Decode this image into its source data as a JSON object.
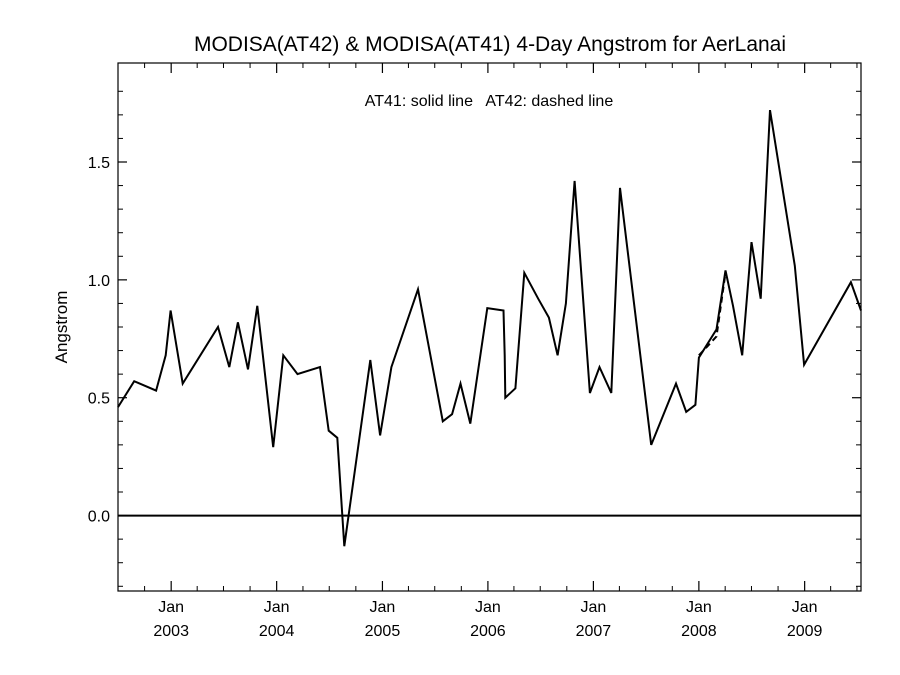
{
  "chart_data": {
    "type": "line",
    "title": "MODISA(AT42) & MODISA(AT41) 4-Day Angstrom for AerLanai",
    "ylabel": "Angstrom",
    "xlabel": "",
    "legend_note": "AT41: solid line   AT42: dashed line",
    "ylim": [
      -0.32,
      1.92
    ],
    "xlim": [
      "2002-07-01",
      "2009-07-15"
    ],
    "y_ticks": [
      {
        "value": 0.0,
        "label": "0.0"
      },
      {
        "value": 0.5,
        "label": "0.5"
      },
      {
        "value": 1.0,
        "label": "1.0"
      },
      {
        "value": 1.5,
        "label": "1.5"
      }
    ],
    "x_ticks": [
      {
        "date": "2003-01-01",
        "month": "Jan",
        "year": "2003"
      },
      {
        "date": "2004-01-01",
        "month": "Jan",
        "year": "2004"
      },
      {
        "date": "2005-01-01",
        "month": "Jan",
        "year": "2005"
      },
      {
        "date": "2006-01-01",
        "month": "Jan",
        "year": "2006"
      },
      {
        "date": "2007-01-01",
        "month": "Jan",
        "year": "2007"
      },
      {
        "date": "2008-01-01",
        "month": "Jan",
        "year": "2008"
      },
      {
        "date": "2009-01-01",
        "month": "Jan",
        "year": "2009"
      }
    ],
    "reference_line": {
      "y": 0.0
    },
    "series": [
      {
        "name": "AT41",
        "style": "solid",
        "color": "#000000",
        "points": [
          [
            "2002-07-01",
            0.46
          ],
          [
            "2002-08-26",
            0.57
          ],
          [
            "2002-11-10",
            0.53
          ],
          [
            "2002-12-13",
            0.68
          ],
          [
            "2002-12-30",
            0.87
          ],
          [
            "2003-02-10",
            0.56
          ],
          [
            "2003-06-12",
            0.8
          ],
          [
            "2003-07-21",
            0.63
          ],
          [
            "2003-08-20",
            0.82
          ],
          [
            "2003-09-24",
            0.62
          ],
          [
            "2003-10-26",
            0.89
          ],
          [
            "2003-12-20",
            0.29
          ],
          [
            "2004-01-24",
            0.68
          ],
          [
            "2004-03-13",
            0.6
          ],
          [
            "2004-05-30",
            0.63
          ],
          [
            "2004-06-29",
            0.36
          ],
          [
            "2004-07-29",
            0.33
          ],
          [
            "2004-08-22",
            -0.13
          ],
          [
            "2004-11-20",
            0.66
          ],
          [
            "2004-12-24",
            0.34
          ],
          [
            "2005-02-01",
            0.63
          ],
          [
            "2005-05-04",
            0.96
          ],
          [
            "2005-07-29",
            0.4
          ],
          [
            "2005-08-30",
            0.43
          ],
          [
            "2005-09-28",
            0.56
          ],
          [
            "2005-11-01",
            0.39
          ],
          [
            "2005-12-30",
            0.88
          ],
          [
            "2006-02-24",
            0.87
          ],
          [
            "2006-02-28",
            0.68
          ],
          [
            "2006-03-02",
            0.5
          ],
          [
            "2006-04-06",
            0.54
          ],
          [
            "2006-05-07",
            1.03
          ],
          [
            "2006-06-24",
            0.92
          ],
          [
            "2006-07-31",
            0.84
          ],
          [
            "2006-08-30",
            0.68
          ],
          [
            "2006-09-28",
            0.9
          ],
          [
            "2006-10-28",
            1.42
          ],
          [
            "2006-12-20",
            0.52
          ],
          [
            "2007-01-22",
            0.63
          ],
          [
            "2007-03-04",
            0.52
          ],
          [
            "2007-04-03",
            1.39
          ],
          [
            "2007-07-20",
            0.3
          ],
          [
            "2007-10-14",
            0.56
          ],
          [
            "2007-11-18",
            0.44
          ],
          [
            "2007-12-20",
            0.47
          ],
          [
            "2008-01-01",
            0.67
          ],
          [
            "2008-03-02",
            0.79
          ],
          [
            "2008-04-02",
            1.04
          ],
          [
            "2008-04-28",
            0.89
          ],
          [
            "2008-05-30",
            0.68
          ],
          [
            "2008-07-01",
            1.16
          ],
          [
            "2008-08-02",
            0.92
          ],
          [
            "2008-09-03",
            1.72
          ],
          [
            "2008-11-28",
            1.06
          ],
          [
            "2008-12-30",
            0.64
          ],
          [
            "2009-06-10",
            0.99
          ],
          [
            "2009-07-15",
            0.87
          ]
        ]
      },
      {
        "name": "AT42",
        "style": "dashed",
        "color": "#000000",
        "points": [
          [
            "2008-01-01",
            0.68
          ],
          [
            "2008-02-01",
            0.72
          ],
          [
            "2008-03-02",
            0.76
          ],
          [
            "2008-04-02",
            1.03
          ]
        ]
      }
    ]
  }
}
